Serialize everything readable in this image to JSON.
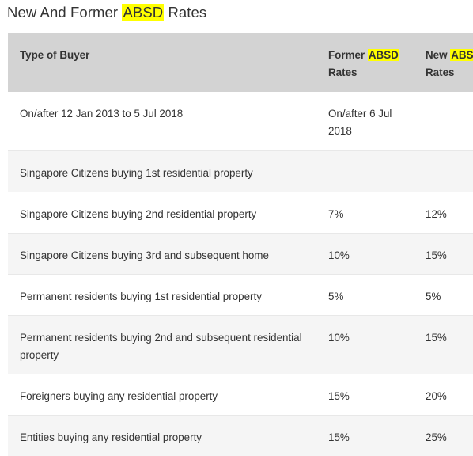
{
  "title": {
    "before": "New And Former ",
    "highlight": "ABSD",
    "after": " Rates"
  },
  "table": {
    "headers": {
      "type": "Type of Buyer",
      "former_before": "Former ",
      "former_highlight": "ABSD",
      "former_after": "Rates",
      "new_before": "New ",
      "new_highlight": "ABSD",
      "new_after": "Rates"
    },
    "rows": [
      {
        "type": "On/after 12 Jan 2013 to 5 Jul 2018",
        "former": "On/after 6 Jul 2018",
        "new": ""
      },
      {
        "type": "Singapore Citizens buying 1st residential property",
        "former": "",
        "new": ""
      },
      {
        "type": "Singapore Citizens buying 2nd residential property",
        "former": "7%",
        "new": "12%"
      },
      {
        "type": "Singapore Citizens buying 3rd and subsequent home",
        "former": "10%",
        "new": "15%"
      },
      {
        "type": "Permanent residents buying 1st residential property",
        "former": "5%",
        "new": "5%"
      },
      {
        "type": "Permanent residents buying 2nd and subsequent residential property",
        "former": "10%",
        "new": "15%"
      },
      {
        "type": "Foreigners buying any residential property",
        "former": "15%",
        "new": "20%"
      },
      {
        "type": "Entities buying any residential property",
        "former": "15%",
        "new": "25%"
      }
    ]
  }
}
